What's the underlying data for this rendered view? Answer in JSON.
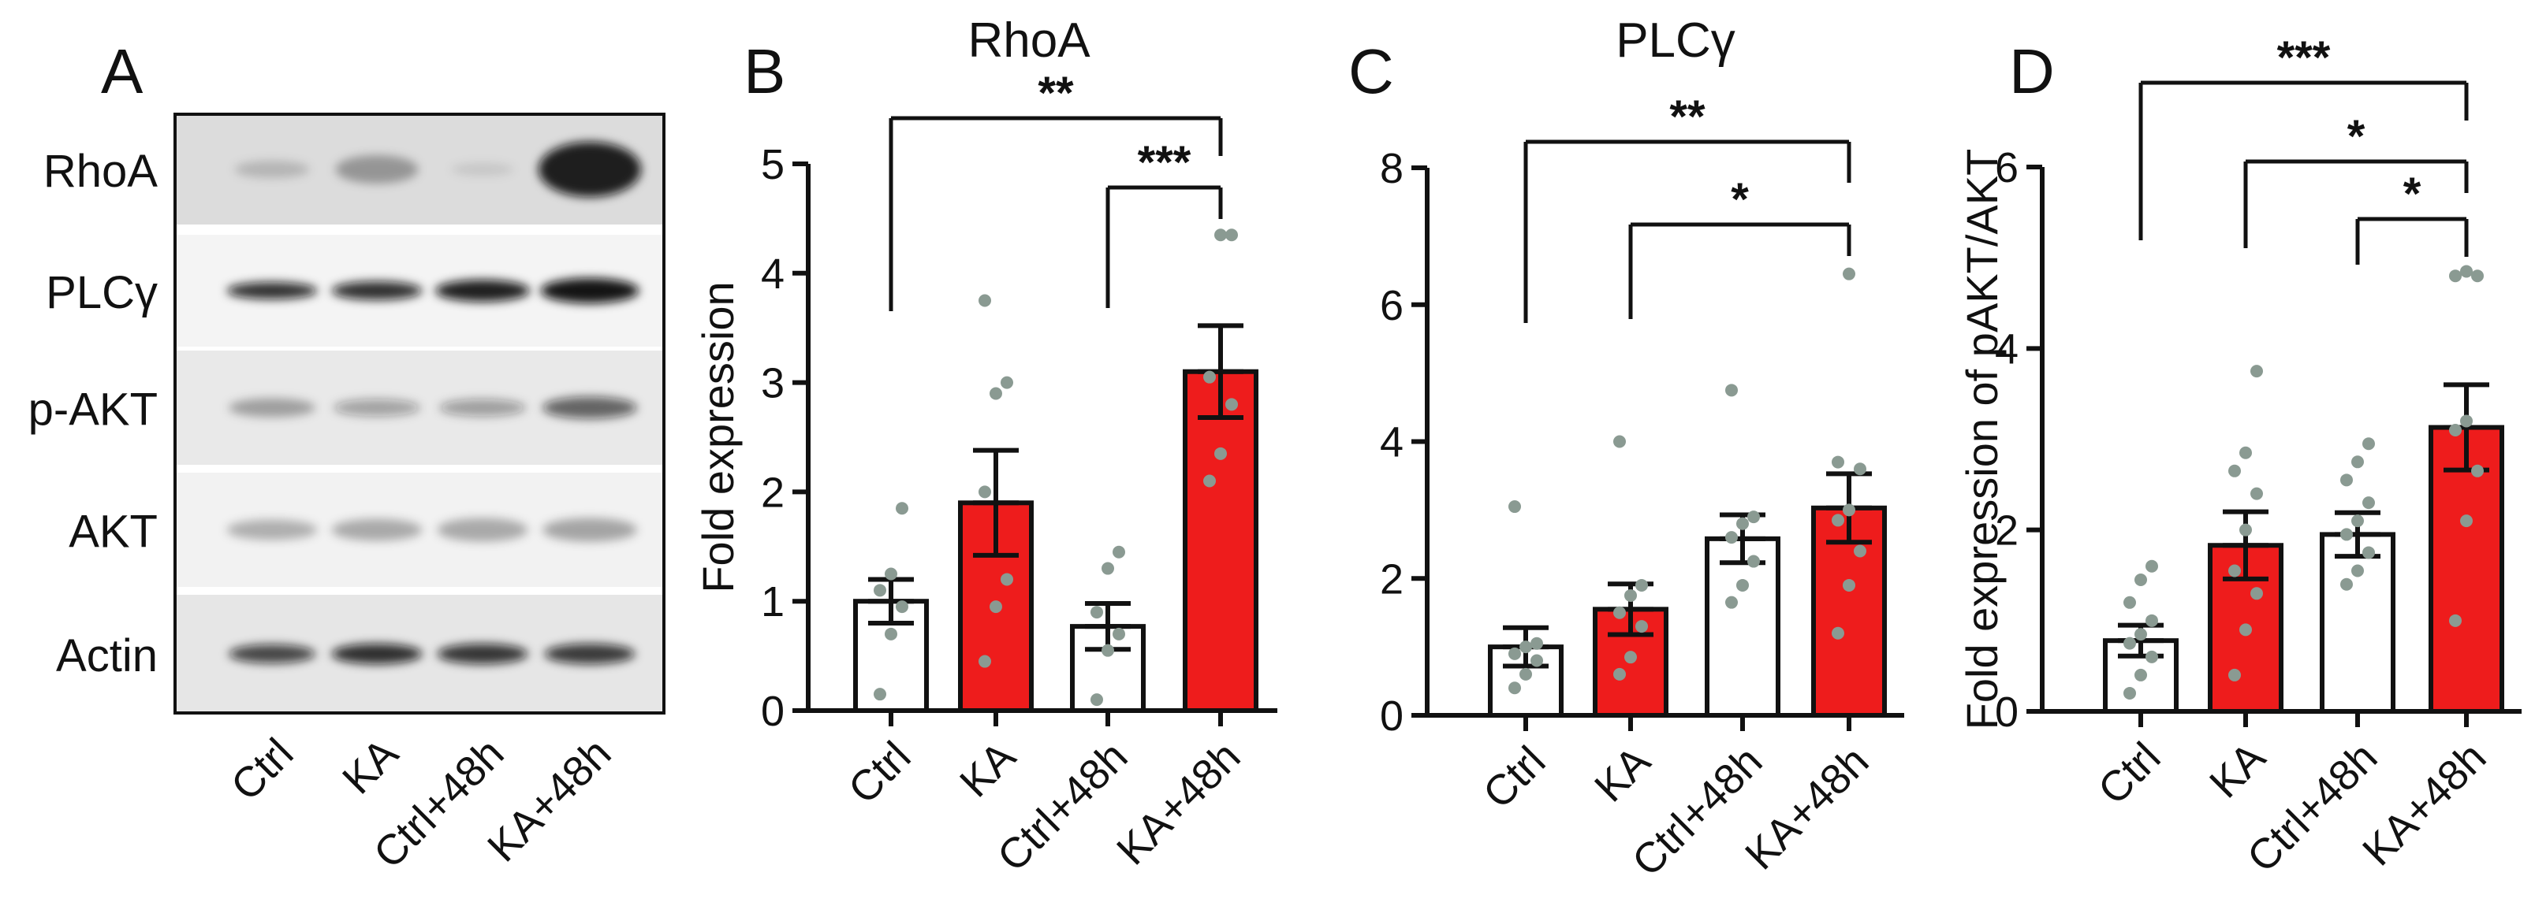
{
  "colors": {
    "ka": "#ee1c1c",
    "ctrl": "#ffffff",
    "stroke": "#111111",
    "dots": "#8a9a92"
  },
  "blot": {
    "panel_label": "A",
    "rows": [
      "RhoA",
      "PLCγ",
      "p-AKT",
      "AKT",
      "Actin"
    ],
    "lane_labels": [
      "Ctrl",
      "KA",
      "Ctrl+48h",
      "KA+48h"
    ]
  },
  "chart_data": [
    {
      "type": "bar",
      "panel_label": "B",
      "title": "RhoA",
      "ylabel": "Fold  expression",
      "xlabel": "",
      "categories": [
        "Ctrl",
        "KA",
        "Ctrl+48h",
        "KA+48h"
      ],
      "values": [
        1.0,
        1.9,
        0.77,
        3.1
      ],
      "errors": [
        0.2,
        0.48,
        0.21,
        0.42
      ],
      "points": [
        [
          0.15,
          0.7,
          0.95,
          1.1,
          1.25,
          1.85
        ],
        [
          0.45,
          0.95,
          1.2,
          2.0,
          2.9,
          3.0,
          3.75
        ],
        [
          0.1,
          0.55,
          0.7,
          0.9,
          1.3,
          1.45
        ],
        [
          2.1,
          2.35,
          2.8,
          3.05,
          4.35,
          4.35
        ]
      ],
      "ylim": [
        0,
        5
      ],
      "yticks": [
        0,
        1,
        2,
        3,
        4,
        5
      ],
      "significance": [
        {
          "from": 0,
          "to": 3,
          "label": "**"
        },
        {
          "from": 2,
          "to": 3,
          "label": "***"
        }
      ]
    },
    {
      "type": "bar",
      "panel_label": "C",
      "title": "PLCγ",
      "ylabel": "",
      "xlabel": "",
      "categories": [
        "Ctrl",
        "KA",
        "Ctrl+48h",
        "KA+48h"
      ],
      "values": [
        1.0,
        1.55,
        2.58,
        3.03
      ],
      "errors": [
        0.28,
        0.37,
        0.35,
        0.5
      ],
      "points": [
        [
          0.4,
          0.6,
          0.8,
          0.9,
          1.0,
          1.05,
          3.05
        ],
        [
          0.6,
          0.85,
          1.3,
          1.5,
          1.75,
          1.9,
          4.0
        ],
        [
          1.65,
          1.9,
          2.25,
          2.6,
          2.8,
          2.9,
          4.75
        ],
        [
          1.2,
          1.9,
          2.4,
          2.85,
          3.0,
          3.6,
          3.7,
          6.45
        ]
      ],
      "ylim": [
        0,
        8
      ],
      "yticks": [
        0,
        2,
        4,
        6,
        8
      ],
      "significance": [
        {
          "from": 0,
          "to": 3,
          "label": "**"
        },
        {
          "from": 1,
          "to": 3,
          "label": "*"
        }
      ]
    },
    {
      "type": "bar",
      "panel_label": "D",
      "title": "",
      "ylabel": "Fold  expression of pAKT/AKT",
      "xlabel": "",
      "categories": [
        "Ctrl",
        "KA",
        "Ctrl+48h",
        "KA+48h"
      ],
      "values": [
        0.78,
        1.83,
        1.95,
        3.13
      ],
      "errors": [
        0.17,
        0.37,
        0.24,
        0.47
      ],
      "points": [
        [
          0.2,
          0.4,
          0.6,
          0.75,
          0.85,
          1.0,
          1.2,
          1.45,
          1.6
        ],
        [
          0.4,
          0.9,
          1.3,
          1.55,
          2.0,
          2.4,
          2.65,
          2.85,
          3.75
        ],
        [
          1.4,
          1.55,
          1.75,
          1.95,
          2.1,
          2.3,
          2.55,
          2.75,
          2.95
        ],
        [
          1.0,
          2.1,
          2.65,
          3.1,
          3.2,
          4.8,
          4.8,
          4.85
        ]
      ],
      "ylim": [
        0,
        6
      ],
      "yticks": [
        0,
        2,
        4,
        6
      ],
      "significance": [
        {
          "from": 0,
          "to": 3,
          "label": "***"
        },
        {
          "from": 1,
          "to": 3,
          "label": "*"
        },
        {
          "from": 2,
          "to": 3,
          "label": "*"
        }
      ]
    }
  ]
}
